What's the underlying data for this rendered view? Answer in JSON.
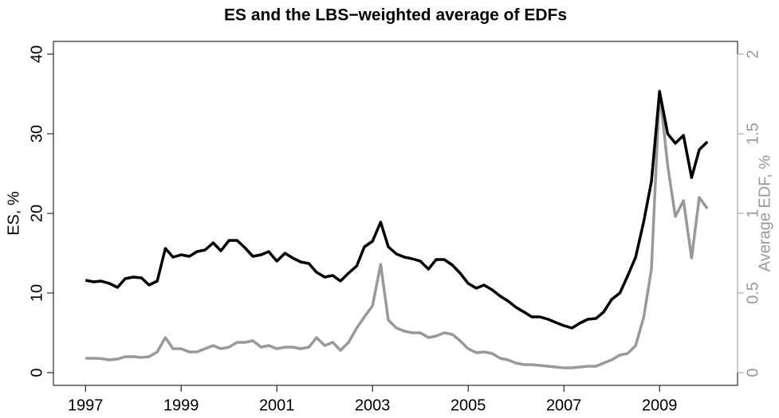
{
  "chart_data": {
    "type": "line",
    "title": "ES and the LBS−weighted average of EDFs",
    "y_label": "ES, %",
    "y2_label": "Average EDF, %",
    "x": [
      1997,
      1997.17,
      1997.33,
      1997.5,
      1997.67,
      1997.83,
      1998,
      1998.17,
      1998.33,
      1998.5,
      1998.67,
      1998.83,
      1999,
      1999.17,
      1999.33,
      1999.5,
      1999.67,
      1999.83,
      2000,
      2000.17,
      2000.33,
      2000.5,
      2000.67,
      2000.83,
      2001,
      2001.17,
      2001.33,
      2001.5,
      2001.67,
      2001.83,
      2002,
      2002.17,
      2002.33,
      2002.5,
      2002.67,
      2002.83,
      2003,
      2003.17,
      2003.33,
      2003.5,
      2003.67,
      2003.83,
      2004,
      2004.17,
      2004.33,
      2004.5,
      2004.67,
      2004.83,
      2005,
      2005.17,
      2005.33,
      2005.5,
      2005.67,
      2005.83,
      2006,
      2006.17,
      2006.33,
      2006.5,
      2006.67,
      2006.83,
      2007,
      2007.17,
      2007.33,
      2007.5,
      2007.67,
      2007.83,
      2008,
      2008.17,
      2008.33,
      2008.5,
      2008.67,
      2008.83,
      2009,
      2009.17,
      2009.33,
      2009.5,
      2009.67,
      2009.83,
      2010
    ],
    "series": [
      {
        "name": "ES",
        "color": "#000000",
        "axis": "y",
        "values": [
          11.6,
          11.4,
          11.5,
          11.2,
          10.7,
          11.8,
          12.0,
          11.9,
          11.0,
          11.5,
          15.6,
          14.5,
          14.8,
          14.6,
          15.2,
          15.4,
          16.3,
          15.3,
          16.6,
          16.6,
          15.7,
          14.6,
          14.8,
          15.2,
          14.0,
          15.0,
          14.4,
          13.9,
          13.7,
          12.6,
          12.0,
          12.2,
          11.5,
          12.5,
          13.4,
          15.8,
          16.5,
          18.9,
          15.8,
          14.9,
          14.5,
          14.3,
          14.0,
          13.0,
          14.2,
          14.2,
          13.5,
          12.5,
          11.2,
          10.6,
          11.0,
          10.4,
          9.6,
          9.0,
          8.2,
          7.6,
          7.0,
          7.0,
          6.7,
          6.3,
          5.9,
          5.6,
          6.2,
          6.7,
          6.8,
          7.6,
          9.2,
          10.0,
          12.1,
          14.5,
          19.0,
          24.0,
          35.3,
          30.0,
          28.8,
          29.8,
          24.5,
          28.0,
          29.0
        ]
      },
      {
        "name": "Average EDF",
        "color": "#999999",
        "axis": "y2",
        "values": [
          0.09,
          0.09,
          0.088,
          0.08,
          0.085,
          0.1,
          0.1,
          0.095,
          0.1,
          0.13,
          0.22,
          0.15,
          0.15,
          0.13,
          0.13,
          0.15,
          0.17,
          0.15,
          0.16,
          0.19,
          0.19,
          0.2,
          0.16,
          0.17,
          0.15,
          0.16,
          0.16,
          0.15,
          0.16,
          0.22,
          0.17,
          0.19,
          0.14,
          0.19,
          0.28,
          0.35,
          0.42,
          0.68,
          0.33,
          0.28,
          0.26,
          0.25,
          0.25,
          0.22,
          0.23,
          0.25,
          0.24,
          0.2,
          0.15,
          0.125,
          0.13,
          0.12,
          0.09,
          0.08,
          0.06,
          0.05,
          0.05,
          0.045,
          0.04,
          0.035,
          0.03,
          0.03,
          0.035,
          0.04,
          0.04,
          0.06,
          0.08,
          0.11,
          0.12,
          0.17,
          0.35,
          0.65,
          1.77,
          1.3,
          0.98,
          1.08,
          0.72,
          1.1,
          1.03
        ]
      }
    ],
    "xlim": [
      1996.33,
      2010.63
    ],
    "xticks": [
      1997,
      1999,
      2001,
      2003,
      2005,
      2007,
      2009
    ],
    "ylim": [
      -1.6,
      41.6
    ],
    "yticks": [
      0,
      10,
      20,
      30,
      40
    ],
    "y2lim": [
      -0.08,
      2.08
    ],
    "y2ticks": [
      0,
      0.5,
      1,
      1.5,
      2
    ],
    "y2_color": "#999999"
  }
}
